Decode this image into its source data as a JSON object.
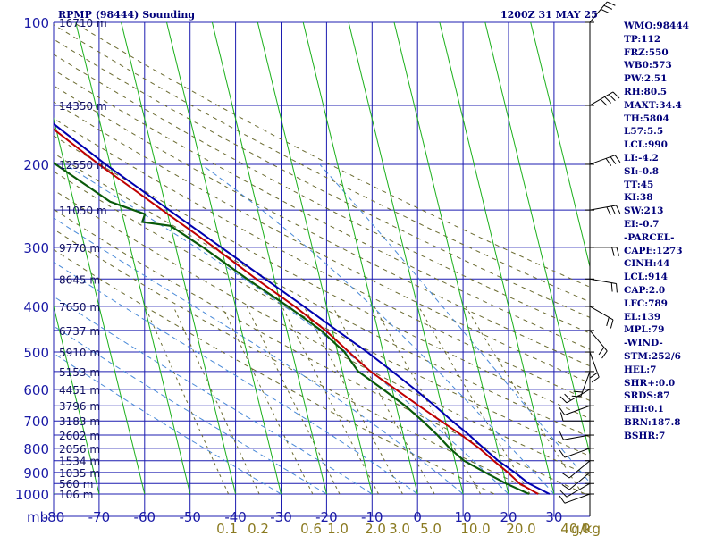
{
  "header": {
    "station": "RPMP (98444) Sounding",
    "time": "1200Z 31 MAY 25"
  },
  "axis": {
    "unit_label": "mb"
  },
  "indices": [
    "WMO:98444",
    "TP:112",
    "FRZ:550",
    "WB0:573",
    "PW:2.51",
    "RH:80.5",
    "MAXT:34.4",
    "TH:5804",
    "L57:5.5",
    "LCL:990",
    "LI:-4.2",
    "SI:-0.8",
    "TT:45",
    "KI:38",
    "SW:213",
    "EI:-0.7",
    "-PARCEL-",
    "CAPE:1273",
    "CINH:44",
    "LCL:914",
    "CAP:2.0",
    "LFC:789",
    "EL:139",
    "MPL:79",
    "-WIND-",
    "STM:252/6",
    "HEL:7",
    "SHR+:0.0",
    "SRDS:87",
    "EHI:0.1",
    "BRN:187.8",
    "BSHR:7"
  ],
  "colors": {
    "grid": "#1c1cb0",
    "isotherm": "#1bb01b",
    "dry_adiabat": "#6b6b30",
    "moist_adiabat": "#4a8ad8",
    "temperature": "#c00000",
    "dewpoint": "#0a5a0a",
    "parcel": "#0000b0",
    "wind": "#000000"
  },
  "chart_data": {
    "type": "skew-t",
    "x_ticks": [
      "-80",
      "-70",
      "-60",
      "-50",
      "-40",
      "-30",
      "-20",
      "-10",
      "0",
      "10",
      "20",
      "30"
    ],
    "x_tick_values": [
      -80,
      -70,
      -60,
      -50,
      -40,
      -30,
      -20,
      -10,
      0,
      10,
      20,
      30
    ],
    "x_range": [
      -80,
      40
    ],
    "y_range": [
      100,
      1000
    ],
    "pressure_labels": [
      "100",
      "200",
      "300",
      "400",
      "500",
      "600",
      "700",
      "800",
      "900",
      "1000"
    ],
    "pressure_values": [
      100,
      200,
      300,
      400,
      500,
      600,
      700,
      800,
      900,
      1000
    ],
    "height_labels": [
      {
        "p": 100,
        "label": "16710 m"
      },
      {
        "p": 150,
        "label": "14350 m"
      },
      {
        "p": 200,
        "label": "12550 m"
      },
      {
        "p": 250,
        "label": "11050 m"
      },
      {
        "p": 300,
        "label": "9770 m"
      },
      {
        "p": 350,
        "label": "8645 m"
      },
      {
        "p": 400,
        "label": "7650 m"
      },
      {
        "p": 450,
        "label": "6737 m"
      },
      {
        "p": 500,
        "label": "5910 m"
      },
      {
        "p": 550,
        "label": "5153 m"
      },
      {
        "p": 600,
        "label": "4451 m"
      },
      {
        "p": 650,
        "label": "3796 m"
      },
      {
        "p": 700,
        "label": "3183 m"
      },
      {
        "p": 750,
        "label": "2602 m"
      },
      {
        "p": 800,
        "label": "2056 m"
      },
      {
        "p": 850,
        "label": "1534 m"
      },
      {
        "p": 900,
        "label": "1035 m"
      },
      {
        "p": 950,
        "label": "560 m"
      },
      {
        "p": 1000,
        "label": "106 m"
      }
    ],
    "mixing_ratio_labels": [
      "0.1",
      "0.2",
      "0.6",
      "1.0",
      "2.0",
      "3.0",
      "5.0",
      "10.0",
      "20.0",
      "40.0"
    ],
    "mixing_ratio_unit": "g/kg",
    "temperature": [
      {
        "p": 1000,
        "t": 26.5
      },
      {
        "p": 950,
        "t": 23
      },
      {
        "p": 900,
        "t": 21
      },
      {
        "p": 850,
        "t": 18.5
      },
      {
        "p": 800,
        "t": 16
      },
      {
        "p": 750,
        "t": 12.8
      },
      {
        "p": 700,
        "t": 9
      },
      {
        "p": 650,
        "t": 5
      },
      {
        "p": 600,
        "t": 0.8
      },
      {
        "p": 550,
        "t": -3.8
      },
      {
        "p": 500,
        "t": -7.5
      },
      {
        "p": 450,
        "t": -11.5
      },
      {
        "p": 400,
        "t": -17
      },
      {
        "p": 350,
        "t": -24
      },
      {
        "p": 300,
        "t": -31.5
      },
      {
        "p": 250,
        "t": -41
      },
      {
        "p": 200,
        "t": -52.5
      },
      {
        "p": 150,
        "t": -66
      },
      {
        "p": 100,
        "t": -79
      }
    ],
    "dewpoint": [
      {
        "p": 1000,
        "t": 24.5
      },
      {
        "p": 950,
        "t": 20
      },
      {
        "p": 900,
        "t": 16
      },
      {
        "p": 850,
        "t": 12
      },
      {
        "p": 800,
        "t": 9.5
      },
      {
        "p": 750,
        "t": 7.5
      },
      {
        "p": 700,
        "t": 5
      },
      {
        "p": 650,
        "t": 2
      },
      {
        "p": 600,
        "t": -2
      },
      {
        "p": 550,
        "t": -6.5
      },
      {
        "p": 500,
        "t": -8.5
      },
      {
        "p": 450,
        "t": -12.5
      },
      {
        "p": 400,
        "t": -18.5
      },
      {
        "p": 350,
        "t": -26
      },
      {
        "p": 300,
        "t": -34
      },
      {
        "p": 270,
        "t": -40
      },
      {
        "p": 265,
        "t": -46
      },
      {
        "p": 255,
        "t": -45
      },
      {
        "p": 240,
        "t": -52
      },
      {
        "p": 200,
        "t": -62
      },
      {
        "p": 170,
        "t": -72
      },
      {
        "p": 150,
        "t": -76
      },
      {
        "p": 120,
        "t": -80
      },
      {
        "p": 100,
        "t": -82
      }
    ],
    "parcel": [
      {
        "p": 1000,
        "t": 29
      },
      {
        "p": 950,
        "t": 25
      },
      {
        "p": 900,
        "t": 22.5
      },
      {
        "p": 850,
        "t": 19.5
      },
      {
        "p": 800,
        "t": 17
      },
      {
        "p": 750,
        "t": 14.5
      },
      {
        "p": 700,
        "t": 11.5
      },
      {
        "p": 650,
        "t": 8.5
      },
      {
        "p": 600,
        "t": 5
      },
      {
        "p": 550,
        "t": 1
      },
      {
        "p": 500,
        "t": -3.5
      },
      {
        "p": 450,
        "t": -9
      },
      {
        "p": 400,
        "t": -15
      },
      {
        "p": 350,
        "t": -22
      },
      {
        "p": 300,
        "t": -30
      },
      {
        "p": 250,
        "t": -39.5
      },
      {
        "p": 200,
        "t": -51
      },
      {
        "p": 150,
        "t": -64.5
      },
      {
        "p": 100,
        "t": -79
      }
    ],
    "isotherm_start_temps": [
      -160,
      -150,
      -140,
      -130,
      -120,
      -110,
      -100,
      -90,
      -80,
      -70,
      -60,
      -50,
      -40,
      -30,
      -20,
      -10,
      0,
      10,
      20,
      30,
      40,
      50
    ],
    "dry_adiabat_thetas": [
      290,
      300,
      310,
      320,
      330,
      340,
      350,
      360,
      370,
      380,
      390,
      400,
      410,
      420,
      430
    ],
    "moist_adiabat_start_temps": [
      -30,
      -20,
      -10,
      0,
      10,
      20,
      30,
      40
    ],
    "mixing_ratios": [
      0.1,
      0.2,
      0.6,
      1.0,
      2.0,
      3.0,
      5.0,
      10.0,
      20.0,
      40.0
    ],
    "wind_profile": [
      {
        "p": 1000,
        "dir": 250,
        "spd": 5
      },
      {
        "p": 950,
        "dir": 240,
        "spd": 8
      },
      {
        "p": 900,
        "dir": 230,
        "spd": 10
      },
      {
        "p": 850,
        "dir": 230,
        "spd": 12
      },
      {
        "p": 800,
        "dir": 250,
        "spd": 10
      },
      {
        "p": 750,
        "dir": 260,
        "spd": 8
      },
      {
        "p": 700,
        "dir": 270,
        "spd": 10
      },
      {
        "p": 650,
        "dir": 250,
        "spd": 12
      },
      {
        "p": 600,
        "dir": 240,
        "spd": 15
      },
      {
        "p": 550,
        "dir": 200,
        "spd": 15
      },
      {
        "p": 500,
        "dir": 160,
        "spd": 18
      },
      {
        "p": 450,
        "dir": 140,
        "spd": 20
      },
      {
        "p": 400,
        "dir": 120,
        "spd": 20
      },
      {
        "p": 350,
        "dir": 100,
        "spd": 22
      },
      {
        "p": 300,
        "dir": 90,
        "spd": 20
      },
      {
        "p": 250,
        "dir": 80,
        "spd": 25
      },
      {
        "p": 200,
        "dir": 70,
        "spd": 30
      },
      {
        "p": 150,
        "dir": 60,
        "spd": 35
      },
      {
        "p": 100,
        "dir": 40,
        "spd": 30
      }
    ]
  }
}
